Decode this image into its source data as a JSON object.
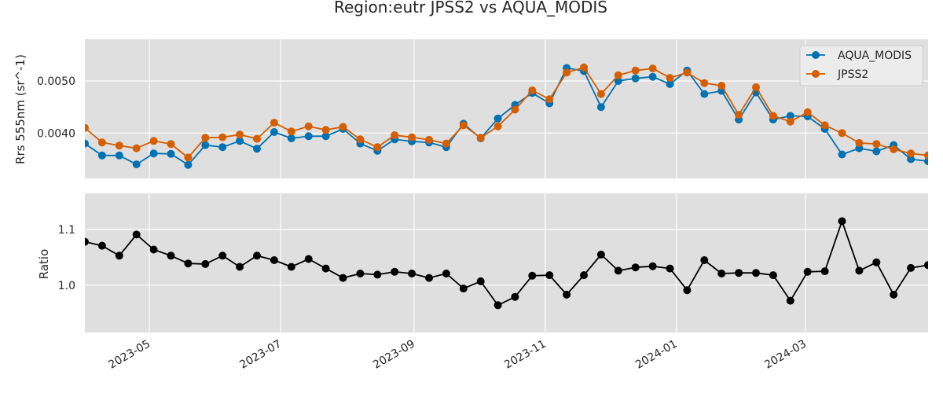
{
  "chart_data": [
    {
      "type": "line",
      "title": "Region:eutr JPSS2 vs AQUA_MODIS",
      "ylabel": "Rrs 555nm (sr^-1)",
      "xlabel": "",
      "x": [
        "2023-04-01",
        "2023-04-09",
        "2023-04-17",
        "2023-04-25",
        "2023-05-03",
        "2023-05-11",
        "2023-05-19",
        "2023-05-27",
        "2023-06-04",
        "2023-06-12",
        "2023-06-20",
        "2023-06-28",
        "2023-07-06",
        "2023-07-14",
        "2023-07-22",
        "2023-07-30",
        "2023-08-07",
        "2023-08-15",
        "2023-08-23",
        "2023-08-31",
        "2023-09-08",
        "2023-09-16",
        "2023-09-24",
        "2023-10-02",
        "2023-10-10",
        "2023-10-18",
        "2023-10-26",
        "2023-11-03",
        "2023-11-11",
        "2023-11-19",
        "2023-11-27",
        "2023-12-05",
        "2023-12-13",
        "2023-12-21",
        "2023-12-29",
        "2024-01-06",
        "2024-01-14",
        "2024-01-22",
        "2024-01-30",
        "2024-02-07",
        "2024-02-15",
        "2024-02-23",
        "2024-03-02",
        "2024-03-10",
        "2024-03-18",
        "2024-03-26",
        "2024-04-03",
        "2024-04-11",
        "2024-04-19",
        "2024-04-27"
      ],
      "series": [
        {
          "name": "AQUA_MODIS",
          "color": "#0072b2",
          "values": [
            0.0038,
            0.00357,
            0.00357,
            0.0034,
            0.00361,
            0.0036,
            0.00339,
            0.00377,
            0.00373,
            0.00385,
            0.0037,
            0.00402,
            0.0039,
            0.00394,
            0.00394,
            0.00408,
            0.0038,
            0.00366,
            0.00388,
            0.00384,
            0.00382,
            0.00373,
            0.00418,
            0.0039,
            0.00428,
            0.00454,
            0.00477,
            0.00457,
            0.00525,
            0.00519,
            0.0045,
            0.005,
            0.00505,
            0.00508,
            0.00494,
            0.0052,
            0.00475,
            0.00481,
            0.00426,
            0.00478,
            0.00426,
            0.00433,
            0.00432,
            0.00408,
            0.00359,
            0.00371,
            0.00365,
            0.00377,
            0.0035,
            0.00346
          ]
        },
        {
          "name": "JPSS2",
          "color": "#d55e00",
          "values": [
            0.0041,
            0.00382,
            0.00376,
            0.00371,
            0.00385,
            0.00379,
            0.00353,
            0.00391,
            0.00392,
            0.00397,
            0.00389,
            0.0042,
            0.00403,
            0.00413,
            0.00406,
            0.00412,
            0.00388,
            0.00373,
            0.00396,
            0.00392,
            0.00387,
            0.0038,
            0.00415,
            0.00391,
            0.00413,
            0.00445,
            0.00482,
            0.00465,
            0.00516,
            0.00526,
            0.00475,
            0.00511,
            0.0052,
            0.00524,
            0.00506,
            0.00516,
            0.00496,
            0.00491,
            0.00435,
            0.00488,
            0.00433,
            0.00422,
            0.0044,
            0.00415,
            0.004,
            0.00381,
            0.00379,
            0.00369,
            0.00361,
            0.00357
          ]
        }
      ],
      "ylim": [
        0.00313,
        0.0058
      ],
      "yticks": [
        0.004,
        0.005
      ],
      "ytick_labels": [
        "0.0040",
        "0.0050"
      ],
      "legend": "upper right",
      "grid": true
    },
    {
      "type": "line",
      "title": "",
      "ylabel": "Ratio",
      "xlabel": "",
      "x": [
        "2023-04-01",
        "2023-04-09",
        "2023-04-17",
        "2023-04-25",
        "2023-05-03",
        "2023-05-11",
        "2023-05-19",
        "2023-05-27",
        "2023-06-04",
        "2023-06-12",
        "2023-06-20",
        "2023-06-28",
        "2023-07-06",
        "2023-07-14",
        "2023-07-22",
        "2023-07-30",
        "2023-08-07",
        "2023-08-15",
        "2023-08-23",
        "2023-08-31",
        "2023-09-08",
        "2023-09-16",
        "2023-09-24",
        "2023-10-02",
        "2023-10-10",
        "2023-10-18",
        "2023-10-26",
        "2023-11-03",
        "2023-11-11",
        "2023-11-19",
        "2023-11-27",
        "2023-12-05",
        "2023-12-13",
        "2023-12-21",
        "2023-12-29",
        "2024-01-06",
        "2024-01-14",
        "2024-01-22",
        "2024-01-30",
        "2024-02-07",
        "2024-02-15",
        "2024-02-23",
        "2024-03-02",
        "2024-03-10",
        "2024-03-18",
        "2024-03-26",
        "2024-04-03",
        "2024-04-11",
        "2024-04-19",
        "2024-04-27"
      ],
      "series": [
        {
          "color": "#000000",
          "values": [
            1.078,
            1.071,
            1.053,
            1.091,
            1.064,
            1.053,
            1.039,
            1.038,
            1.053,
            1.033,
            1.053,
            1.045,
            1.033,
            1.047,
            1.03,
            1.013,
            1.021,
            1.019,
            1.024,
            1.021,
            1.013,
            1.021,
            0.994,
            1.007,
            0.964,
            0.979,
            1.017,
            1.018,
            0.983,
            1.018,
            1.055,
            1.026,
            1.032,
            1.034,
            1.03,
            0.991,
            1.045,
            1.021,
            1.022,
            1.022,
            1.018,
            0.972,
            1.024,
            1.025,
            1.115,
            1.026,
            1.041,
            0.983,
            1.031,
            1.036
          ]
        }
      ],
      "ylim": [
        0.915,
        1.165
      ],
      "yticks": [
        1.0,
        1.1
      ],
      "ytick_labels": [
        "1.0",
        "1.1"
      ],
      "grid": true
    }
  ],
  "x_axis": {
    "range": [
      "2023-04-01",
      "2024-04-27"
    ],
    "ticks": [
      "2023-05-01",
      "2023-07-01",
      "2023-09-01",
      "2023-11-01",
      "2024-01-01",
      "2024-03-01"
    ],
    "tick_labels": [
      "2023-05",
      "2023-07",
      "2023-09",
      "2023-11",
      "2024-01",
      "2024-03"
    ]
  },
  "style": {
    "background": "#dfdfdf",
    "grid_color": "#ffffff"
  }
}
